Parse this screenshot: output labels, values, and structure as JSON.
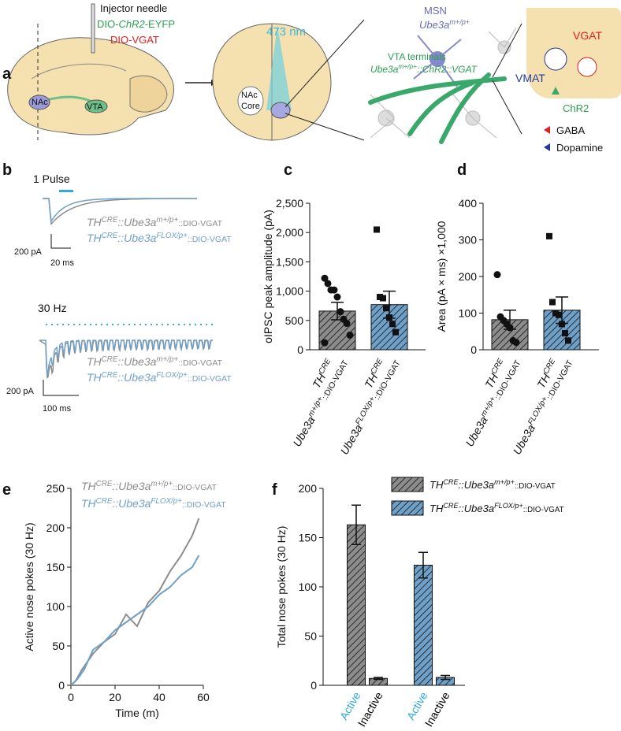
{
  "panel_a": {
    "label": "a",
    "needle": "Injector needle",
    "virus1": [
      [
        "DIO-",
        ""
      ],
      [
        "ChR2",
        "i"
      ],
      [
        "-EYFP",
        ""
      ]
    ],
    "virus2": "DIO-VGAT",
    "nac": "NAc",
    "vta": "VTA",
    "light": "473 nm",
    "nac_core": [
      "NAc",
      "Core"
    ],
    "msn": "MSN",
    "msn_genotype": [
      [
        "Ube3a",
        "i"
      ],
      [
        "m+/p+",
        "isup"
      ]
    ],
    "terminals": "VTA terminals",
    "terminal_genotype": [
      [
        "Ube3a",
        "i"
      ],
      [
        "m+/p+",
        "isup"
      ],
      [
        "::",
        "i"
      ],
      [
        "ChR2",
        "i"
      ],
      [
        "::VGAT",
        "i"
      ]
    ],
    "vgat": "VGAT",
    "vmat": "VMAT",
    "chr2": "ChR2",
    "gaba": "GABA",
    "dopamine": "Dopamine"
  },
  "panel_b": {
    "label": "b",
    "pulse": "1 Pulse",
    "hz": "30 Hz",
    "legend": [
      [
        [
          "TH",
          "i"
        ],
        [
          "CRE",
          "isup"
        ],
        [
          "::",
          "i"
        ],
        [
          "Ube3a",
          "i"
        ],
        [
          "m+/p+",
          "isup"
        ],
        [
          "::DIO-VGAT",
          "sm"
        ]
      ],
      [
        [
          "TH",
          "i"
        ],
        [
          "CRE",
          "isup"
        ],
        [
          "::",
          "i"
        ],
        [
          "Ube3a",
          "i"
        ],
        [
          "FLOX/p+",
          "isup"
        ],
        [
          "::DIO-VGAT",
          "sm"
        ]
      ]
    ],
    "legend_colors": [
      "#8c8c8c",
      "#6fa0c8"
    ],
    "scale1": [
      "200 pA",
      "20 ms"
    ],
    "scale2": [
      "200 pA",
      "100 ms"
    ]
  },
  "chart_data": [
    {
      "type": "bar",
      "label": "c",
      "ylabel": "oIPSC peak amplitude (pA)",
      "ylim": [
        0,
        2500
      ],
      "yticks": [
        0,
        500,
        {
          "value": 1000,
          "label": "1,000"
        },
        {
          "value": 1500,
          "label": "1,500"
        },
        {
          "value": 2000,
          "label": "2,000"
        },
        {
          "value": 2500,
          "label": "2,500"
        }
      ],
      "categories": [
        [
          [
            [
              "TH",
              "i"
            ],
            [
              "CRE",
              "isup"
            ]
          ],
          [
            [
              "Ube3a",
              "i"
            ],
            [
              "m+/p+",
              "isup"
            ],
            [
              "::DIO-VGAT",
              "sm"
            ]
          ]
        ],
        [
          [
            [
              "TH",
              "i"
            ],
            [
              "CRE",
              "isup"
            ]
          ],
          [
            [
              "Ube3a",
              "i"
            ],
            [
              "FLOX/p+",
              "isup"
            ],
            [
              "::DIO-VGAT",
              "sm"
            ]
          ]
        ]
      ],
      "values": [
        660,
        770
      ],
      "errors": [
        150,
        230
      ],
      "colors": [
        "#8c8c8c",
        "#6fa0c8"
      ],
      "markers": [
        "circle",
        "square"
      ],
      "points": [
        [
          1220,
          1130,
          1020,
          1020,
          900,
          650,
          520,
          450,
          250,
          120
        ],
        [
          2050,
          900,
          880,
          710,
          550,
          440,
          300
        ]
      ]
    },
    {
      "type": "bar",
      "label": "d",
      "ylabel": "Area (pA × ms) ×1,000",
      "ylim": [
        0,
        400
      ],
      "yticks": [
        0,
        100,
        200,
        300,
        400
      ],
      "categories": [
        [
          [
            [
              "TH",
              "i"
            ],
            [
              "CRE",
              "isup"
            ]
          ],
          [
            [
              "Ube3a",
              "i"
            ],
            [
              "m+/p+",
              "isup"
            ],
            [
              "::DIO-VGAT",
              "sm"
            ]
          ]
        ],
        [
          [
            [
              "TH",
              "i"
            ],
            [
              "CRE",
              "isup"
            ]
          ],
          [
            [
              "Ube3a",
              "i"
            ],
            [
              "FLOX/p+",
              "isup"
            ],
            [
              "::DIO-VGAT",
              "sm"
            ]
          ]
        ]
      ],
      "values": [
        82,
        108
      ],
      "errors": [
        26,
        36
      ],
      "colors": [
        "#8c8c8c",
        "#6fa0c8"
      ],
      "markers": [
        "circle",
        "square"
      ],
      "points": [
        [
          205,
          90,
          80,
          70,
          60,
          25,
          20
        ],
        [
          310,
          130,
          100,
          95,
          70,
          45,
          25
        ]
      ]
    },
    {
      "type": "line",
      "label": "e",
      "xlabel": "Time (m)",
      "ylabel": "Active nose pokes (30 Hz)",
      "xlim": [
        0,
        60
      ],
      "xticks": [
        0,
        20,
        40,
        60
      ],
      "ylim": [
        0,
        250
      ],
      "yticks": [
        0,
        50,
        100,
        150,
        200,
        250
      ],
      "series": [
        {
          "name": [
            [
              "TH",
              "i"
            ],
            [
              "CRE",
              "isup"
            ],
            [
              "::",
              "i"
            ],
            [
              "Ube3a",
              "i"
            ],
            [
              "m+/p+",
              "isup"
            ],
            [
              "::DIO-VGAT",
              "sm"
            ]
          ],
          "color": "#8c8c8c",
          "x": [
            0,
            2,
            5,
            10,
            15,
            20,
            25,
            30,
            35,
            40,
            45,
            50,
            55,
            58
          ],
          "values": [
            0,
            5,
            20,
            40,
            55,
            65,
            90,
            75,
            105,
            120,
            145,
            165,
            190,
            212
          ]
        },
        {
          "name": [
            [
              "TH",
              "i"
            ],
            [
              "CRE",
              "isup"
            ],
            [
              "::",
              "i"
            ],
            [
              "Ube3a",
              "i"
            ],
            [
              "FLOX/p+",
              "isup"
            ],
            [
              "::DIO-VGAT",
              "sm"
            ]
          ],
          "color": "#6fa0c8",
          "x": [
            0,
            3,
            6,
            10,
            15,
            20,
            25,
            30,
            35,
            40,
            45,
            50,
            55,
            58
          ],
          "values": [
            0,
            8,
            20,
            45,
            55,
            70,
            80,
            90,
            100,
            115,
            125,
            140,
            150,
            165
          ]
        }
      ]
    },
    {
      "type": "groupbar",
      "label": "f",
      "ylabel": "Total nose pokes (30 Hz)",
      "ylim": [
        0,
        200
      ],
      "yticks": [
        0,
        50,
        100,
        150,
        200
      ],
      "categories": [
        "Active",
        "Inactive",
        "Active",
        "Inactive"
      ],
      "category_colors": [
        "#2eaadc",
        "#000000",
        "#2eaadc",
        "#000000"
      ],
      "values": [
        163,
        7,
        122,
        8
      ],
      "errors": [
        20,
        1,
        13,
        2
      ],
      "colors": [
        "#8c8c8c",
        "#8c8c8c",
        "#6fa0c8",
        "#6fa0c8"
      ],
      "legend": [
        {
          "name": [
            [
              "TH",
              "i"
            ],
            [
              "CRE",
              "isup"
            ],
            [
              "::",
              "i"
            ],
            [
              "Ube3a",
              "i"
            ],
            [
              "m+/p+",
              "isup"
            ],
            [
              "::DIO-VGAT",
              "sm"
            ]
          ],
          "color": "#8c8c8c"
        },
        {
          "name": [
            [
              "TH",
              "i"
            ],
            [
              "CRE",
              "isup"
            ],
            [
              "::",
              "i"
            ],
            [
              "Ube3a",
              "i"
            ],
            [
              "FLOX/p+",
              "isup"
            ],
            [
              "::DIO-VGAT",
              "sm"
            ]
          ],
          "color": "#6fa0c8"
        }
      ]
    }
  ]
}
